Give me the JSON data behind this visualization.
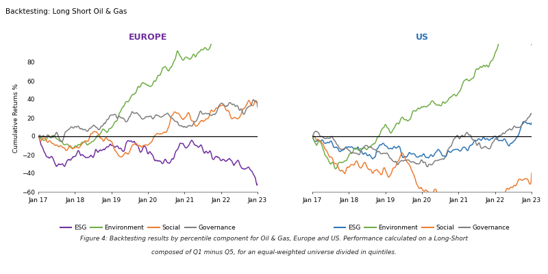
{
  "title": "Backtesting: Long Short Oil & Gas",
  "europe_title": "EUROPE",
  "us_title": "US",
  "ylabel": "Cumulative Returns %",
  "x_ticks": [
    "Jan 17",
    "Jan 18",
    "Jan 19",
    "Jan 20",
    "Jan 21",
    "Jan 22",
    "Jan 23"
  ],
  "ylim": [
    -60,
    100
  ],
  "yticks": [
    -60,
    -40,
    -20,
    0,
    20,
    40,
    60,
    80
  ],
  "europe_colors": {
    "ESG": "#7030A0",
    "Environment": "#70AD47",
    "Social": "#ED7D31",
    "Governance": "#7F7F7F"
  },
  "us_colors": {
    "ESG": "#2E75B6",
    "Environment": "#70AD47",
    "Social": "#ED7D31",
    "Governance": "#7F7F7F"
  },
  "caption_line1": "Figure 4: Backtesting results by percentile component for Oil & Gas, Europe and US. Performance calculated on a Long-Short",
  "caption_line2": "composed of Q1 minus Q5, for an equal-weighted universe divided in quintiles.",
  "background_color": "#FFFFFF",
  "n_points": 420
}
